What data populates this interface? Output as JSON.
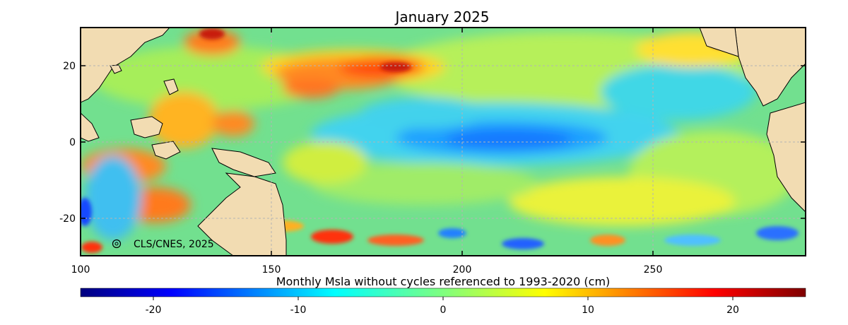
{
  "map": {
    "title": "January 2025",
    "copyright": "CLS/CNES, 2025",
    "lon_ticks": [
      "100",
      "150",
      "200",
      "250"
    ],
    "lat_ticks": [
      "20",
      "0",
      "-20"
    ],
    "lon_range": [
      100,
      290
    ],
    "lat_range": [
      -30,
      30
    ],
    "grid": true
  },
  "colorbar": {
    "label": "Monthly Msla without cycles  referenced to 1993-2020 (cm)",
    "ticks": [
      "-20",
      "-10",
      "0",
      "10",
      "20"
    ],
    "range": [
      -25,
      25
    ],
    "colors": [
      "#00007f",
      "#0000ff",
      "#007fff",
      "#00ffff",
      "#7fff7f",
      "#ffff00",
      "#ff7f00",
      "#ff0000",
      "#7f0000"
    ]
  },
  "colors": {
    "land": "#f2dcb2",
    "ocean_base": "#6fe29a",
    "coast": "#000000"
  }
}
